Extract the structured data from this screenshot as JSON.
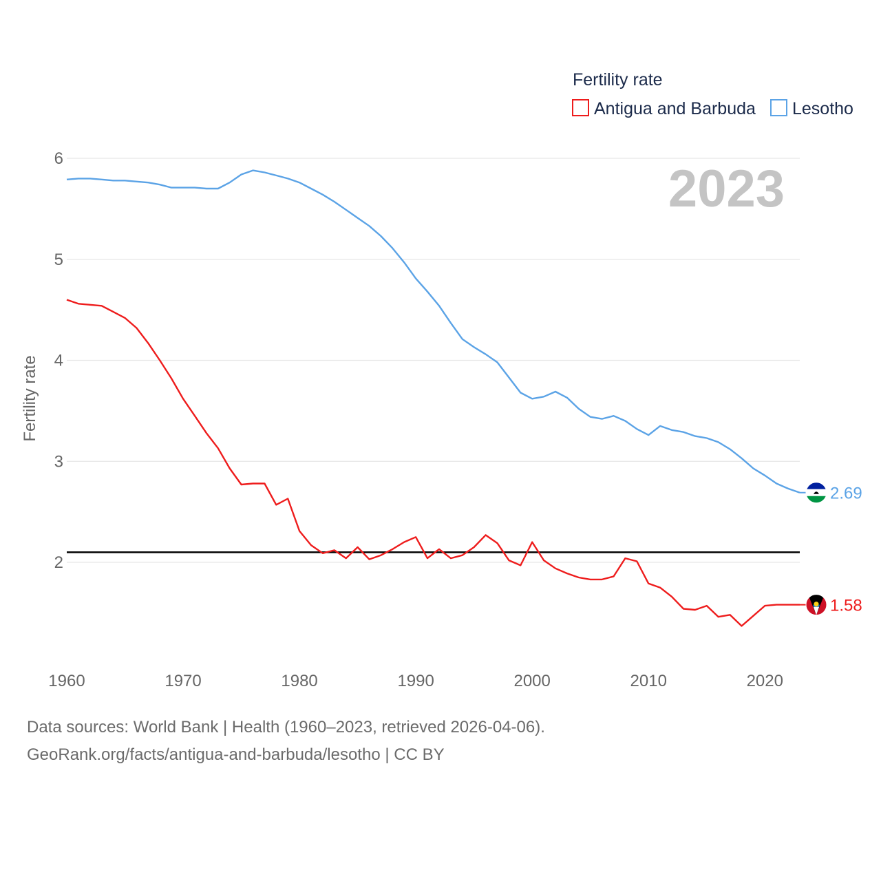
{
  "chart_data": {
    "type": "line",
    "legend_title": "Fertility rate",
    "ylabel": "Fertility rate",
    "year_label": "2023",
    "xlim": [
      1960,
      2023
    ],
    "ylim": [
      1.05,
      6.1
    ],
    "x_ticks": [
      1960,
      1970,
      1980,
      1990,
      2000,
      2010,
      2020
    ],
    "y_ticks": [
      2,
      3,
      4,
      5,
      6
    ],
    "reference_line": 2.1,
    "series": [
      {
        "name": "Antigua and Barbuda",
        "color": "#ee1c1c",
        "end_label": "1.58",
        "x": [
          1960,
          1961,
          1962,
          1963,
          1964,
          1965,
          1966,
          1967,
          1968,
          1969,
          1970,
          1971,
          1972,
          1973,
          1974,
          1975,
          1976,
          1977,
          1978,
          1979,
          1980,
          1981,
          1982,
          1983,
          1984,
          1985,
          1986,
          1987,
          1988,
          1989,
          1990,
          1991,
          1992,
          1993,
          1994,
          1995,
          1996,
          1997,
          1998,
          1999,
          2000,
          2001,
          2002,
          2003,
          2004,
          2005,
          2006,
          2007,
          2008,
          2009,
          2010,
          2011,
          2012,
          2013,
          2014,
          2015,
          2016,
          2017,
          2018,
          2019,
          2020,
          2021,
          2022,
          2023
        ],
        "values": [
          4.6,
          4.56,
          4.55,
          4.54,
          4.48,
          4.42,
          4.32,
          4.17,
          4.0,
          3.82,
          3.62,
          3.45,
          3.28,
          3.13,
          2.93,
          2.77,
          2.78,
          2.78,
          2.57,
          2.63,
          2.31,
          2.17,
          2.09,
          2.12,
          2.04,
          2.15,
          2.03,
          2.07,
          2.13,
          2.2,
          2.25,
          2.04,
          2.13,
          2.04,
          2.07,
          2.15,
          2.27,
          2.19,
          2.02,
          1.97,
          2.2,
          2.02,
          1.94,
          1.89,
          1.85,
          1.83,
          1.83,
          1.86,
          2.04,
          2.01,
          1.79,
          1.75,
          1.66,
          1.54,
          1.53,
          1.57,
          1.46,
          1.48,
          1.37,
          1.47,
          1.57,
          1.58,
          1.58,
          1.58
        ]
      },
      {
        "name": "Lesotho",
        "color": "#5ba3e6",
        "end_label": "2.69",
        "x": [
          1960,
          1961,
          1962,
          1963,
          1964,
          1965,
          1966,
          1967,
          1968,
          1969,
          1970,
          1971,
          1972,
          1973,
          1974,
          1975,
          1976,
          1977,
          1978,
          1979,
          1980,
          1981,
          1982,
          1983,
          1984,
          1985,
          1986,
          1987,
          1988,
          1989,
          1990,
          1991,
          1992,
          1993,
          1994,
          1995,
          1996,
          1997,
          1998,
          1999,
          2000,
          2001,
          2002,
          2003,
          2004,
          2005,
          2006,
          2007,
          2008,
          2009,
          2010,
          2011,
          2012,
          2013,
          2014,
          2015,
          2016,
          2017,
          2018,
          2019,
          2020,
          2021,
          2022,
          2023
        ],
        "values": [
          5.79,
          5.8,
          5.8,
          5.79,
          5.78,
          5.78,
          5.77,
          5.76,
          5.74,
          5.71,
          5.71,
          5.71,
          5.7,
          5.7,
          5.76,
          5.84,
          5.88,
          5.86,
          5.83,
          5.8,
          5.76,
          5.7,
          5.64,
          5.57,
          5.49,
          5.41,
          5.33,
          5.23,
          5.11,
          4.97,
          4.81,
          4.68,
          4.54,
          4.37,
          4.21,
          4.13,
          4.06,
          3.98,
          3.83,
          3.68,
          3.62,
          3.64,
          3.69,
          3.63,
          3.52,
          3.44,
          3.42,
          3.45,
          3.4,
          3.32,
          3.26,
          3.35,
          3.31,
          3.29,
          3.25,
          3.23,
          3.19,
          3.12,
          3.03,
          2.93,
          2.86,
          2.78,
          2.73,
          2.69
        ]
      }
    ]
  },
  "source": {
    "line1": "Data sources: World Bank | Health (1960–2023, retrieved 2026-04-06).",
    "line2": "GeoRank.org/facts/antigua-and-barbuda/lesotho | CC BY"
  }
}
